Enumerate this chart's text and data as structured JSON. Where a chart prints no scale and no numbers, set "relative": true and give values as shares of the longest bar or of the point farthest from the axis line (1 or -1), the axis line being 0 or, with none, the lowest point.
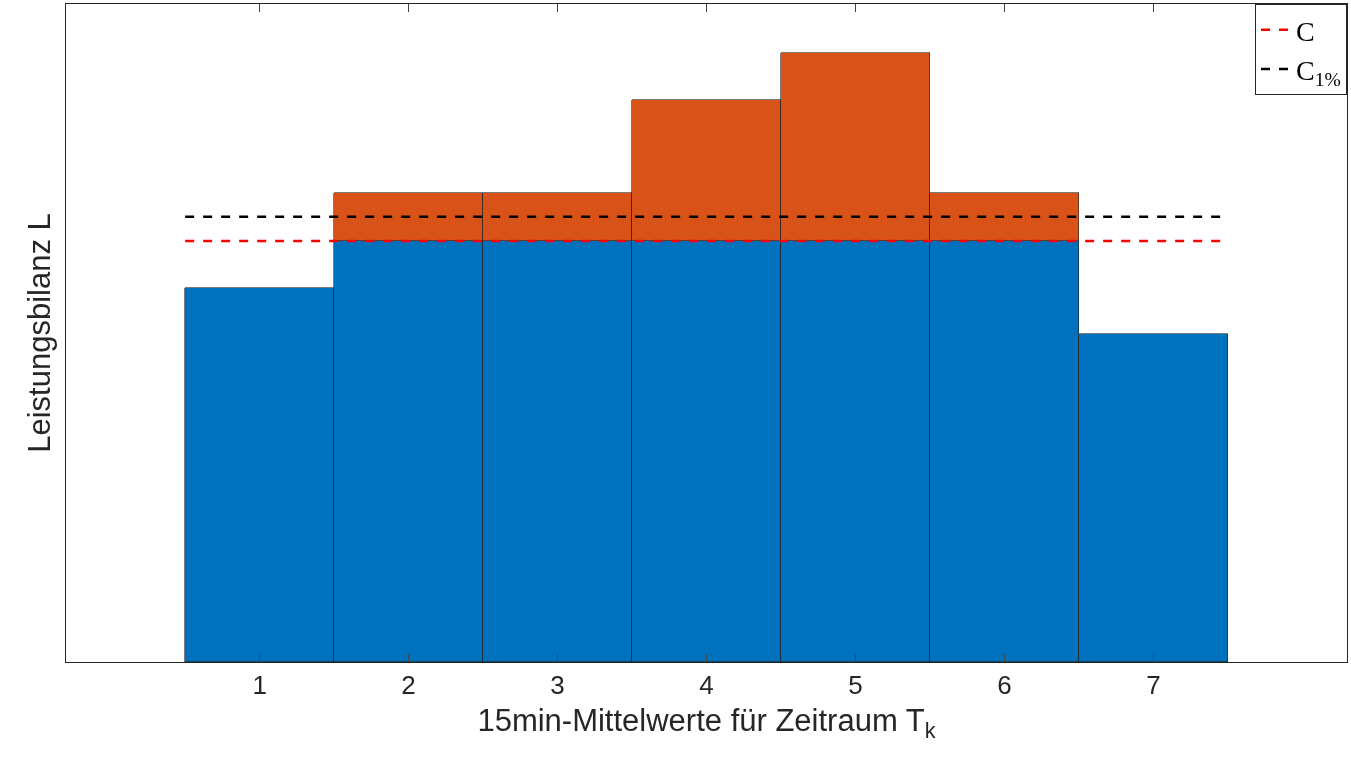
{
  "chart_data": {
    "type": "bar",
    "relative": true,
    "stacked": true,
    "categories": [
      "1",
      "2",
      "3",
      "4",
      "5",
      "6",
      "7"
    ],
    "xlabel": "15min-Mittelwerte für Zeitraum T$_{k}$",
    "ylabel": "Leistungsbilanz L",
    "series": [
      {
        "color": "#0072bd",
        "values": [
          0.614,
          0.691,
          0.691,
          0.691,
          0.691,
          0.691,
          0.538
        ]
      },
      {
        "color": "#d95319",
        "values": [
          null,
          0.078,
          0.078,
          0.231,
          0.309,
          0.078,
          null
        ]
      }
    ],
    "ref_lines": [
      {
        "axis": "y",
        "value": 0.691,
        "label": "C",
        "color": "#ff0000",
        "line_style": "dashed"
      },
      {
        "axis": "y",
        "value": 0.731,
        "label": "C$_{1%}$",
        "color": "#000000",
        "line_style": "dashed"
      }
    ],
    "legend": "top right"
  }
}
